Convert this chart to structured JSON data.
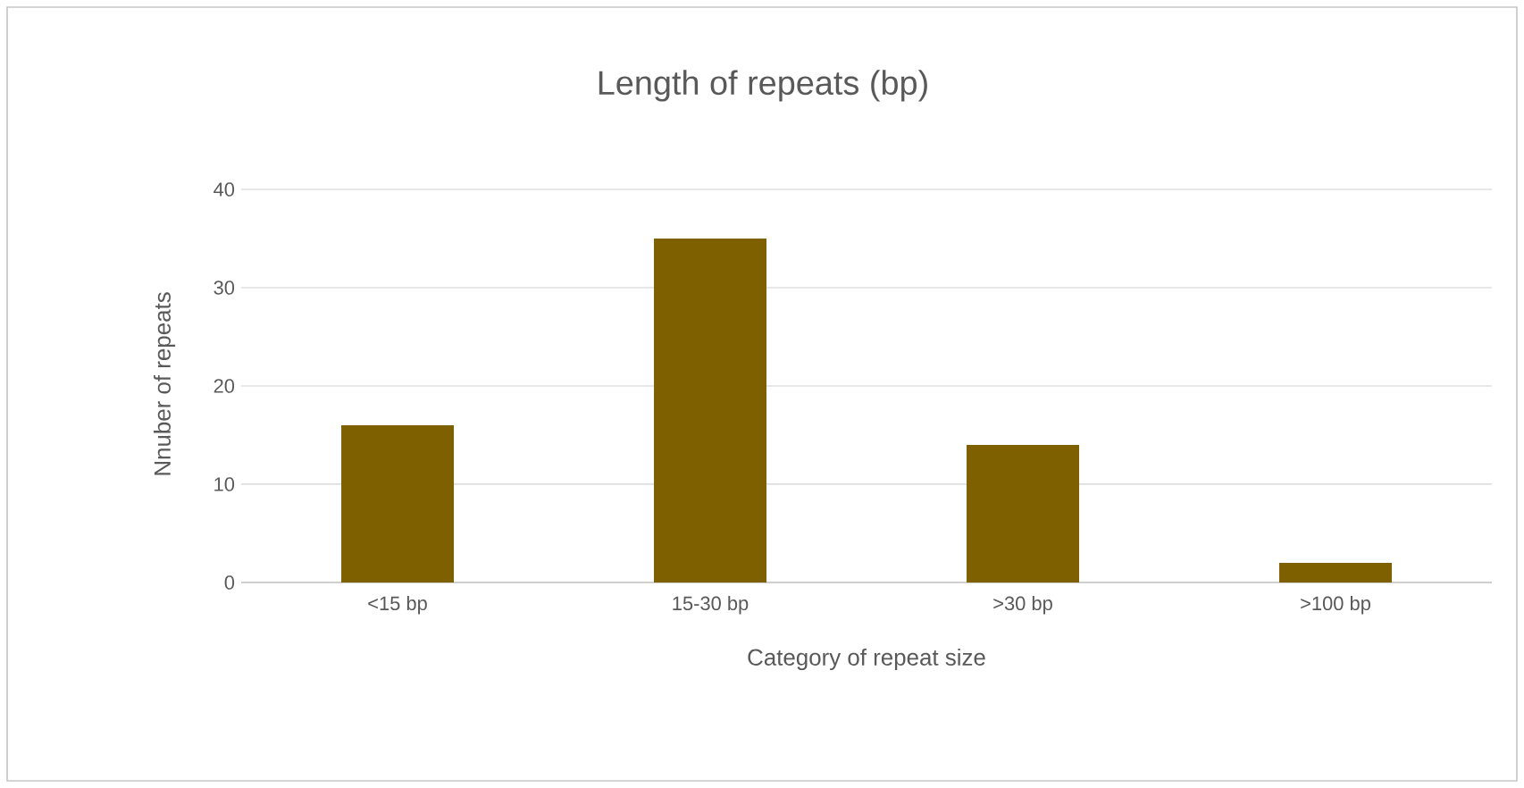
{
  "chart_data": {
    "type": "bar",
    "title": "Length of repeats (bp)",
    "xlabel": "Category of repeat size",
    "ylabel": "Nnuber of repeats",
    "categories": [
      "<15 bp",
      "15-30 bp",
      ">30 bp",
      ">100 bp"
    ],
    "values": [
      16,
      35,
      14,
      2
    ],
    "color": "#7f6000",
    "ylim": [
      0,
      40
    ],
    "yticks": [
      0,
      10,
      20,
      30,
      40
    ],
    "grid": "y"
  }
}
